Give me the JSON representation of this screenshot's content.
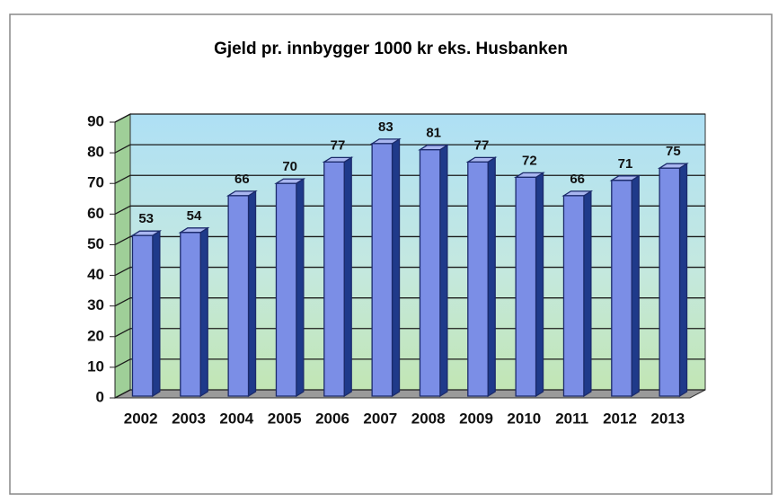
{
  "chart_data": {
    "type": "bar",
    "title": "Gjeld pr. innbygger 1000 kr eks. Husbanken",
    "categories": [
      "2002",
      "2003",
      "2004",
      "2005",
      "2006",
      "2007",
      "2008",
      "2009",
      "2010",
      "2011",
      "2012",
      "2013"
    ],
    "values": [
      53,
      54,
      66,
      70,
      77,
      83,
      81,
      77,
      72,
      66,
      71,
      75
    ],
    "color": "#7b8ee6",
    "ylim": [
      0,
      90
    ],
    "yticks": [
      0,
      10,
      20,
      30,
      40,
      50,
      60,
      70,
      80,
      90
    ],
    "grid": true
  }
}
